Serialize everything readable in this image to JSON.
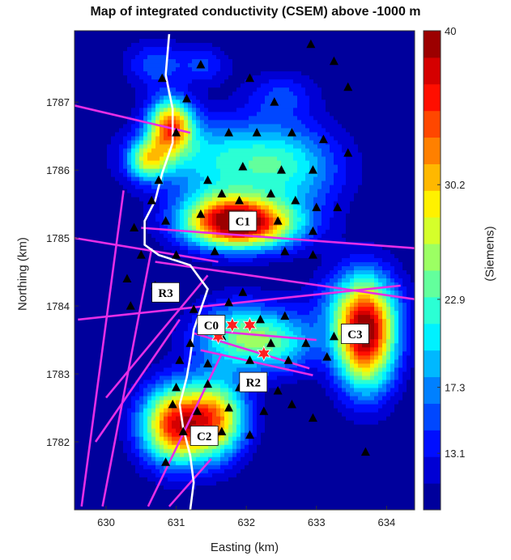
{
  "chart_data": {
    "type": "heatmap",
    "title": "Map of integrated conductivity (CSEM) above -1000 m",
    "xlabel": "Easting (km)",
    "ylabel": "Northing (km)",
    "colorbar_label": "(Siemens)",
    "xlim": [
      629.55,
      634.4
    ],
    "ylim": [
      1781.0,
      1788.05
    ],
    "x_ticks": [
      "630",
      "631",
      "632",
      "633",
      "634"
    ],
    "y_ticks": [
      "1782",
      "1783",
      "1784",
      "1785",
      "1786",
      "1787"
    ],
    "colorbar_range": [
      9.5,
      40
    ],
    "colorbar_ticks": [
      "13.1",
      "17.3",
      "22.9",
      "30.2",
      "40"
    ],
    "colorbar_tick_values": [
      13.1,
      17.3,
      22.9,
      30.2,
      40
    ],
    "colorbar_levels": 18,
    "colormap": "jet",
    "anomalies": [
      {
        "label": "C0",
        "x": 631.62,
        "y": 1783.72,
        "peak": 27
      },
      {
        "label": "C1",
        "x": 631.95,
        "y": 1785.2,
        "peak": 38
      },
      {
        "label": "C2",
        "x": 631.05,
        "y": 1782.25,
        "peak": 37
      },
      {
        "label": "C3",
        "x": 633.72,
        "y": 1783.55,
        "peak": 37
      }
    ],
    "annotations": [
      {
        "label": "C0",
        "x": 631.5,
        "y": 1783.72
      },
      {
        "label": "C1",
        "x": 631.95,
        "y": 1785.25
      },
      {
        "label": "C2",
        "x": 631.4,
        "y": 1782.09
      },
      {
        "label": "C3",
        "x": 633.55,
        "y": 1783.59
      },
      {
        "label": "R2",
        "x": 632.1,
        "y": 1782.88
      },
      {
        "label": "R3",
        "x": 630.85,
        "y": 1784.2
      }
    ],
    "stations": [
      [
        631.35,
        1787.55
      ],
      [
        632.05,
        1787.35
      ],
      [
        632.92,
        1787.85
      ],
      [
        633.25,
        1787.6
      ],
      [
        633.45,
        1787.22
      ],
      [
        630.8,
        1787.35
      ],
      [
        631.15,
        1787.05
      ],
      [
        632.4,
        1787.0
      ],
      [
        631.0,
        1786.55
      ],
      [
        631.75,
        1786.55
      ],
      [
        632.15,
        1786.55
      ],
      [
        632.65,
        1786.55
      ],
      [
        633.1,
        1786.45
      ],
      [
        633.45,
        1786.25
      ],
      [
        631.95,
        1786.05
      ],
      [
        632.5,
        1786.0
      ],
      [
        632.95,
        1786.0
      ],
      [
        630.75,
        1785.85
      ],
      [
        631.45,
        1785.85
      ],
      [
        631.65,
        1785.65
      ],
      [
        630.65,
        1785.55
      ],
      [
        631.9,
        1785.55
      ],
      [
        632.35,
        1785.65
      ],
      [
        632.7,
        1785.55
      ],
      [
        633.0,
        1785.45
      ],
      [
        633.3,
        1785.45
      ],
      [
        630.4,
        1785.15
      ],
      [
        630.85,
        1785.25
      ],
      [
        631.35,
        1785.35
      ],
      [
        632.45,
        1785.25
      ],
      [
        632.95,
        1785.1
      ],
      [
        630.5,
        1784.75
      ],
      [
        631.0,
        1784.75
      ],
      [
        631.55,
        1784.8
      ],
      [
        632.55,
        1784.8
      ],
      [
        632.95,
        1784.75
      ],
      [
        630.3,
        1784.4
      ],
      [
        630.7,
        1784.3
      ],
      [
        631.95,
        1784.2
      ],
      [
        630.35,
        1784.0
      ],
      [
        631.25,
        1783.95
      ],
      [
        631.45,
        1783.8
      ],
      [
        631.75,
        1784.05
      ],
      [
        632.2,
        1783.8
      ],
      [
        632.55,
        1783.85
      ],
      [
        631.2,
        1783.45
      ],
      [
        631.65,
        1783.55
      ],
      [
        632.35,
        1783.45
      ],
      [
        632.85,
        1783.45
      ],
      [
        633.25,
        1783.55
      ],
      [
        631.05,
        1783.2
      ],
      [
        631.45,
        1783.15
      ],
      [
        632.05,
        1783.2
      ],
      [
        632.6,
        1783.2
      ],
      [
        633.15,
        1783.25
      ],
      [
        631.0,
        1782.8
      ],
      [
        631.45,
        1782.85
      ],
      [
        631.9,
        1782.8
      ],
      [
        632.45,
        1782.75
      ],
      [
        630.95,
        1782.55
      ],
      [
        631.3,
        1782.45
      ],
      [
        631.75,
        1782.5
      ],
      [
        632.25,
        1782.45
      ],
      [
        632.65,
        1782.55
      ],
      [
        632.95,
        1782.35
      ],
      [
        631.1,
        1782.15
      ],
      [
        631.65,
        1782.15
      ],
      [
        632.05,
        1782.1
      ],
      [
        633.7,
        1781.85
      ],
      [
        630.85,
        1781.7
      ]
    ],
    "stars": [
      [
        631.6,
        1783.55
      ],
      [
        631.8,
        1783.72
      ],
      [
        632.05,
        1783.72
      ],
      [
        632.25,
        1783.3
      ]
    ],
    "profile_lines": [
      [
        [
          629.55,
          1786.95
        ],
        [
          631.2,
          1786.55
        ]
      ],
      [
        [
          630.5,
          1785.15
        ],
        [
          634.4,
          1784.85
        ]
      ],
      [
        [
          629.55,
          1785.0
        ],
        [
          631.6,
          1784.65
        ]
      ],
      [
        [
          630.7,
          1784.65
        ],
        [
          634.4,
          1784.1
        ]
      ],
      [
        [
          629.6,
          1783.8
        ],
        [
          634.2,
          1784.3
        ]
      ],
      [
        [
          631.3,
          1783.65
        ],
        [
          633.0,
          1783.5
        ]
      ],
      [
        [
          631.25,
          1783.6
        ],
        [
          632.9,
          1783.08
        ]
      ],
      [
        [
          631.35,
          1783.35
        ],
        [
          632.95,
          1782.98
        ]
      ],
      [
        [
          629.65,
          1781.05
        ],
        [
          630.25,
          1785.7
        ]
      ],
      [
        [
          629.95,
          1781.05
        ],
        [
          630.65,
          1784.85
        ]
      ],
      [
        [
          630.0,
          1782.65
        ],
        [
          631.45,
          1784.45
        ]
      ],
      [
        [
          629.85,
          1782.0
        ],
        [
          631.05,
          1783.8
        ]
      ],
      [
        [
          630.6,
          1781.05
        ],
        [
          631.65,
          1783.3
        ]
      ],
      [
        [
          630.9,
          1781.05
        ],
        [
          631.5,
          1781.75
        ]
      ]
    ],
    "boundary_line": [
      [
        630.9,
        1788.0
      ],
      [
        630.85,
        1787.4
      ],
      [
        630.95,
        1786.9
      ],
      [
        630.95,
        1786.4
      ],
      [
        630.8,
        1785.95
      ],
      [
        630.7,
        1785.55
      ],
      [
        630.55,
        1785.25
      ],
      [
        630.55,
        1784.9
      ],
      [
        630.75,
        1784.75
      ],
      [
        631.2,
        1784.6
      ],
      [
        631.45,
        1784.25
      ],
      [
        631.35,
        1783.95
      ],
      [
        631.25,
        1783.65
      ],
      [
        631.2,
        1783.25
      ],
      [
        631.15,
        1782.95
      ],
      [
        631.05,
        1782.55
      ],
      [
        631.1,
        1782.2
      ],
      [
        631.2,
        1781.8
      ],
      [
        631.25,
        1781.4
      ],
      [
        631.2,
        1781.0
      ]
    ]
  }
}
